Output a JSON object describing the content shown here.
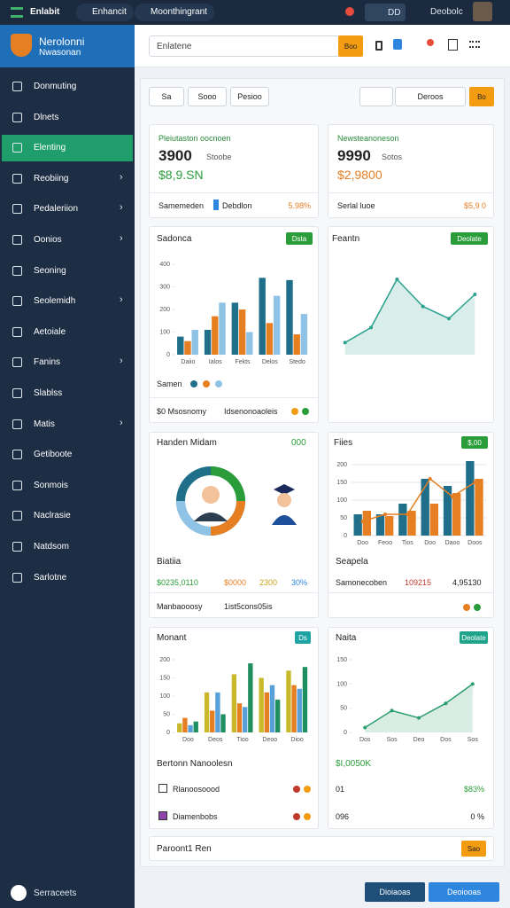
{
  "topbar": {
    "brand": "Enlabit",
    "tab1": "Enhancit",
    "tab2": "Moonthingrant",
    "badge": "DD",
    "user": "Deobolc"
  },
  "sidebar": {
    "title": "Nerolonni",
    "subtitle": "Nwasonan",
    "items": [
      "Donmuting",
      "Dlnets",
      "Elenting",
      "Reobiing",
      "Pedaleriion",
      "Oonios",
      "Seoning",
      "Seolemidh",
      "Aetoiale",
      "Fanins",
      "Slablss",
      "Matis",
      "Getiboote",
      "Sonmois",
      "Naclrasie",
      "Natdsom",
      "Sarlotne"
    ],
    "footer": "Serraceets"
  },
  "search": {
    "placeholder": "Enlatene",
    "button": "Boo"
  },
  "toolbar": {
    "btn1": "Sa",
    "btn2": "Sooo",
    "btn3": "Pesioo",
    "btn4": "Deroos",
    "btn5": "Bo"
  },
  "cards": [
    {
      "title": "Pleiutaston oocnoen",
      "value": "3900",
      "unit": "Stoobe",
      "amount": "$8,9.SN",
      "foot_left": "Samemeden",
      "foot_mid": "Debdlon",
      "foot_right": "5.98%"
    },
    {
      "title": "Newsteanoneson",
      "value": "9990",
      "unit": "Sotos",
      "amount": "$2,9800",
      "foot_left": "Serlal luoe",
      "foot_right": "$5,9 0"
    }
  ],
  "panels": {
    "sales": {
      "badge": "Dsta",
      "legend_title": "Samen",
      "foot_left": "$0 Msosnomy",
      "foot_right": "Idsenonoaoleis"
    },
    "trend": {
      "badge": "Deolate"
    },
    "profile": {
      "title": "Handen Midam",
      "badge": "000",
      "name": "Biatiia",
      "stats": [
        "$0235,0110",
        "$0000",
        "2300",
        "30%"
      ],
      "foot_left": "Manbaooosy",
      "foot_right": "1ist5cons05is"
    },
    "files": {
      "badge": "$,00",
      "subtitle": "Seapela",
      "stats": [
        "Samonecoben",
        "109215",
        "4,95130"
      ]
    },
    "month": {
      "badge": "Ds",
      "subtitle": "Bertonn Nanoolesn",
      "rows": [
        "Rlanoosoood",
        "Diamenbobs"
      ]
    },
    "naita": {
      "badge": "Deolate",
      "amount": "$I,0050K",
      "row1_left": "01",
      "row1_right": "$83%",
      "row2_left": "096",
      "row2_right": "0 %"
    },
    "bottom": {
      "label": "Paroont1 Ren",
      "button": "Sao"
    }
  },
  "footer": {
    "btn1": "Dioiaoas",
    "btn2": "Deoiooas"
  },
  "chart_data": [
    {
      "type": "bar",
      "title": "Sadonca",
      "categories": [
        "Daiio",
        "Ialos",
        "Fekts",
        "Delos",
        "Stedo"
      ],
      "ylim": [
        0,
        400
      ],
      "yticks": [
        0,
        100,
        200,
        300,
        400
      ],
      "grid": false,
      "series": [
        {
          "color": "#1f6f8b",
          "values": [
            80,
            110,
            230,
            340,
            330
          ]
        },
        {
          "color": "#e67e22",
          "values": [
            60,
            170,
            200,
            140,
            90
          ]
        },
        {
          "color": "#8ec3e6",
          "values": [
            110,
            230,
            100,
            260,
            180
          ]
        }
      ]
    },
    {
      "type": "line",
      "title": "Feantn",
      "area": true,
      "ylim": [
        0,
        300
      ],
      "color": "#2aa18d",
      "values": [
        40,
        90,
        250,
        160,
        120,
        200
      ]
    },
    {
      "type": "bar",
      "title": "Fiies",
      "categories": [
        "Doo",
        "Feoo",
        "Tios",
        "Doo",
        "Daoo",
        "Doos"
      ],
      "ylim": [
        0,
        200
      ],
      "yticks": [
        0,
        50,
        100,
        150,
        200
      ],
      "grid": true,
      "series": [
        {
          "color": "#1f6f8b",
          "values": [
            60,
            60,
            90,
            160,
            140,
            210
          ]
        },
        {
          "color": "#e67e22",
          "values": [
            70,
            55,
            70,
            90,
            120,
            160
          ]
        },
        {
          "type": "line",
          "color": "#e67e22",
          "values": [
            40,
            60,
            60,
            160,
            110,
            150
          ]
        }
      ]
    },
    {
      "type": "bar",
      "title": "Monant",
      "categories": [
        "Doo",
        "Deos",
        "Tioo",
        "Deoo",
        "Dioo"
      ],
      "ylim": [
        0,
        200
      ],
      "yticks": [
        0,
        50,
        100,
        150,
        200
      ],
      "grid": false,
      "series": [
        {
          "color": "#c9b82a",
          "values": [
            25,
            110,
            160,
            150,
            170
          ]
        },
        {
          "color": "#e67e22",
          "values": [
            40,
            60,
            80,
            110,
            130
          ]
        },
        {
          "color": "#5aa0d8",
          "values": [
            20,
            110,
            70,
            130,
            120
          ]
        },
        {
          "color": "#1f8f5f",
          "values": [
            30,
            50,
            190,
            90,
            180
          ]
        }
      ]
    },
    {
      "type": "line",
      "title": "Naita",
      "area": true,
      "categories": [
        "Dos",
        "Sos",
        "Deo",
        "Dos",
        "Sos"
      ],
      "ylim": [
        0,
        150
      ],
      "yticks": [
        0,
        50,
        100,
        150
      ],
      "color": "#2a9d6e",
      "values": [
        10,
        45,
        30,
        60,
        100
      ]
    }
  ]
}
